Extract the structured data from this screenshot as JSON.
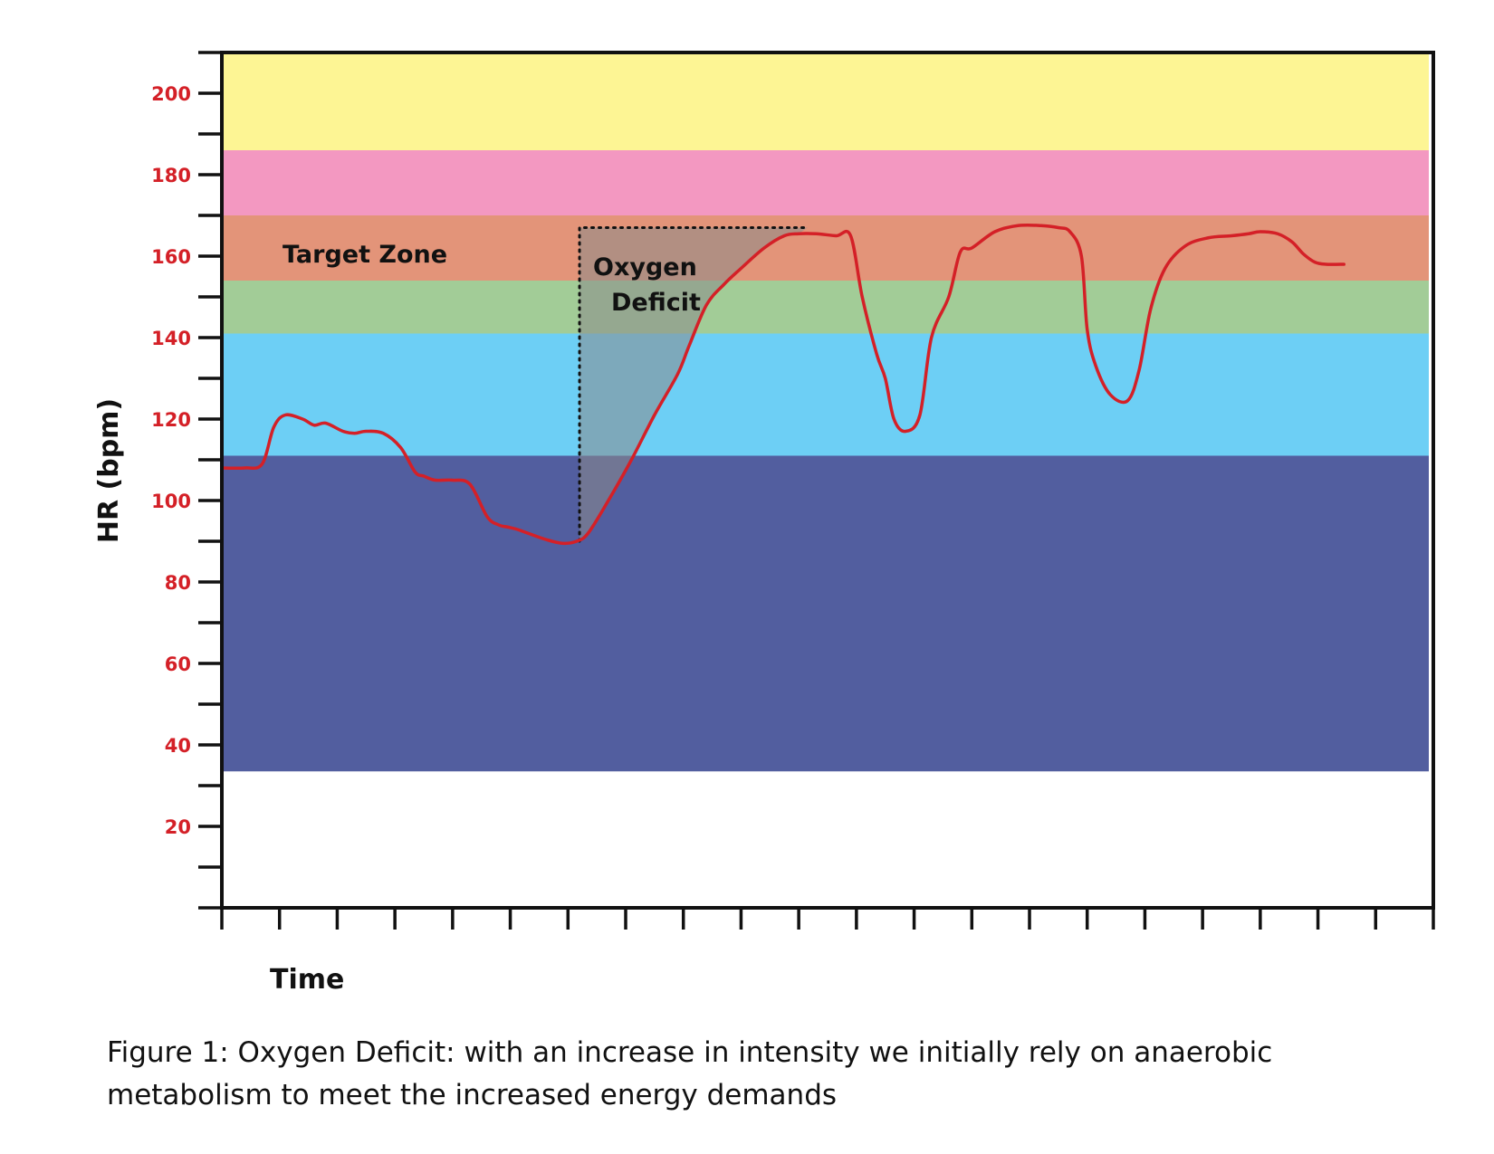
{
  "chart_data": {
    "type": "line",
    "ylabel": "HR (bpm)",
    "xlabel": "Time",
    "ylim": [
      0,
      210
    ],
    "yticks_labeled": [
      20,
      40,
      60,
      80,
      100,
      120,
      140,
      160,
      180,
      200
    ],
    "y_minor_step": 10,
    "x_tick_count": 22,
    "x_range": [
      0,
      21
    ],
    "zones": [
      {
        "from": 186,
        "to": 210,
        "color": "#fdf594"
      },
      {
        "from": 170,
        "to": 186,
        "color": "#f398c1"
      },
      {
        "from": 154,
        "to": 170,
        "color": "#e39479",
        "label": "Target Zone"
      },
      {
        "from": 141,
        "to": 154,
        "color": "#a2cc97"
      },
      {
        "from": 111,
        "to": 141,
        "color": "#6dcff5"
      },
      {
        "from": 33.5,
        "to": 111,
        "color": "#525e9f"
      }
    ],
    "series": [
      {
        "color": "#d42027",
        "x": [
          0,
          0.4,
          0.7,
          0.9,
          1.1,
          1.4,
          1.6,
          1.8,
          2.1,
          2.3,
          2.5,
          2.8,
          3.1,
          3.35,
          3.5,
          3.7,
          4.0,
          4.3,
          4.6,
          4.8,
          4.95,
          5.1,
          5.3,
          5.6,
          5.9,
          6.15,
          6.35,
          6.7,
          7.1,
          7.5,
          7.9,
          8.1,
          8.4,
          8.7,
          9.0,
          9.4,
          9.75,
          10.0,
          10.3,
          10.65,
          10.9,
          11.1,
          11.35,
          11.5,
          11.65,
          11.85,
          12.1,
          12.3,
          12.6,
          12.8,
          13.0,
          13.4,
          13.8,
          14.2,
          14.5,
          14.7,
          14.9,
          15.0,
          15.15,
          15.4,
          15.7,
          15.9,
          16.1,
          16.35,
          16.7,
          17.1,
          17.5,
          17.8,
          18.0,
          18.3,
          18.55,
          18.75,
          18.95,
          19.15,
          19.45
        ],
        "y": [
          108,
          108,
          109,
          118,
          121,
          120,
          118.5,
          119,
          117,
          116.5,
          117,
          116.5,
          113,
          107,
          106,
          105,
          105,
          104,
          96,
          94,
          93.5,
          93,
          92,
          90.5,
          89.5,
          90,
          92,
          100,
          110,
          121,
          131,
          138,
          148,
          153,
          157,
          162,
          165,
          165.5,
          165.5,
          165,
          165,
          150,
          136,
          130,
          120,
          117,
          121,
          140,
          150,
          161,
          162,
          166,
          167.5,
          167.5,
          167,
          166,
          160,
          142,
          133,
          126,
          124.5,
          132,
          147,
          157,
          162.5,
          164.5,
          165,
          165.5,
          166,
          165.5,
          163.5,
          160.5,
          158.5,
          158,
          158
        ]
      }
    ],
    "annotations": [
      {
        "text_lines": [
          "Oxygen",
          "Deficit"
        ],
        "region": {
          "x_start": 6.2,
          "x_end": 10.15,
          "y_bottom": 90,
          "y_top": 167
        }
      }
    ]
  },
  "caption": {
    "line1": "Figure 1: Oxygen Deficit: with an increase in intensity we initially rely on anaerobic",
    "line2": "metabolism to meet the increased energy demands"
  }
}
